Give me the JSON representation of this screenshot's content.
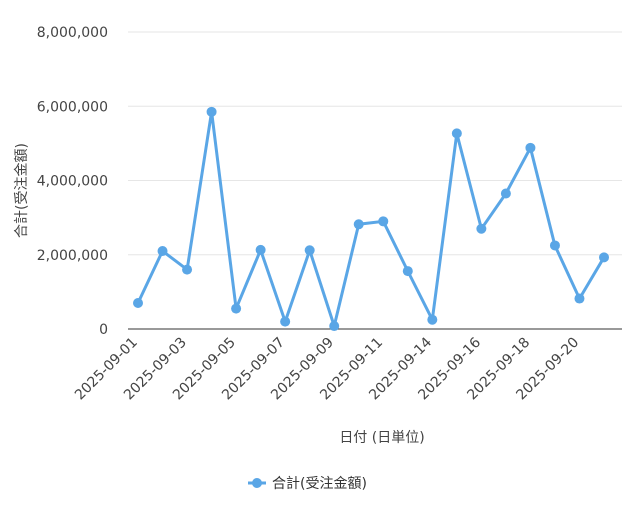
{
  "chart_data": {
    "type": "line",
    "ylabel": "合計(受注金額)",
    "xlabel": "日付 (日単位)",
    "ylim": [
      0,
      8000000
    ],
    "yticks": [
      0,
      2000000,
      4000000,
      6000000,
      8000000
    ],
    "ytick_labels": [
      "0",
      "2,000,000",
      "4,000,000",
      "6,000,000",
      "8,000,000"
    ],
    "grid": true,
    "legend_position": "bottom",
    "color": "#5aa6e6",
    "x_labeled_indices": [
      0,
      2,
      4,
      6,
      8,
      10,
      12,
      14,
      16,
      18
    ],
    "x": [
      "2025-09-01",
      "2025-09-02",
      "2025-09-03",
      "2025-09-04",
      "2025-09-05",
      "2025-09-06",
      "2025-09-07",
      "2025-09-08",
      "2025-09-09",
      "2025-09-10",
      "2025-09-11",
      "2025-09-12",
      "2025-09-14",
      "2025-09-15",
      "2025-09-16",
      "2025-09-17",
      "2025-09-18",
      "2025-09-19",
      "2025-09-20",
      "2025-09-21"
    ],
    "series": [
      {
        "name": "合計(受注金額)",
        "values": [
          700000,
          2100000,
          1600000,
          5850000,
          550000,
          2130000,
          200000,
          2120000,
          80000,
          2820000,
          2900000,
          1560000,
          250000,
          5270000,
          2700000,
          3650000,
          4880000,
          2250000,
          820000,
          1930000
        ]
      }
    ]
  }
}
